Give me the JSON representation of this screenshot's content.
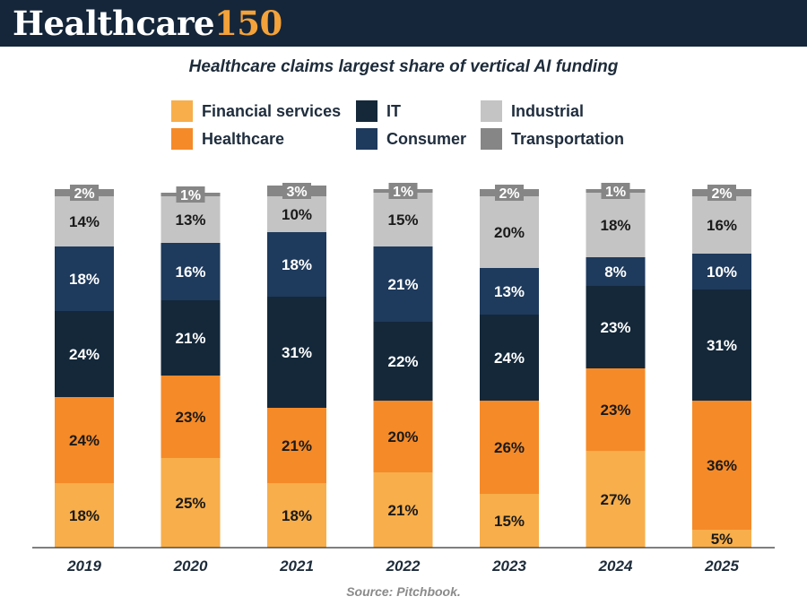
{
  "header": {
    "brand_word": "Healthcare",
    "brand_number": "150",
    "background": "#15263a",
    "accent": "#f4a23a"
  },
  "chart_data": {
    "type": "bar",
    "stacked": true,
    "title": "Healthcare claims largest share of vertical AI funding",
    "xlabel": "",
    "ylabel": "",
    "ylim": [
      0,
      100
    ],
    "grid": false,
    "legend_position": "top",
    "categories": [
      "2019",
      "2020",
      "2021",
      "2022",
      "2023",
      "2024",
      "2025"
    ],
    "series": [
      {
        "name": "Financial services",
        "color": "#f7ae4b",
        "values": [
          18,
          25,
          18,
          21,
          15,
          27,
          5
        ]
      },
      {
        "name": "Healthcare",
        "color": "#f58a28",
        "values": [
          24,
          23,
          21,
          20,
          26,
          23,
          36
        ]
      },
      {
        "name": "IT",
        "color": "#14283a",
        "values": [
          24,
          21,
          31,
          22,
          24,
          23,
          31
        ]
      },
      {
        "name": "Consumer",
        "color": "#1e3a5c",
        "values": [
          18,
          16,
          18,
          21,
          13,
          8,
          10
        ]
      },
      {
        "name": "Industrial",
        "color": "#c4c4c4",
        "values": [
          14,
          13,
          10,
          15,
          20,
          18,
          16
        ]
      },
      {
        "name": "Transportation",
        "color": "#868686",
        "values": [
          2,
          1,
          3,
          1,
          2,
          1,
          2
        ]
      }
    ],
    "source": "Source: Pitchbook."
  }
}
